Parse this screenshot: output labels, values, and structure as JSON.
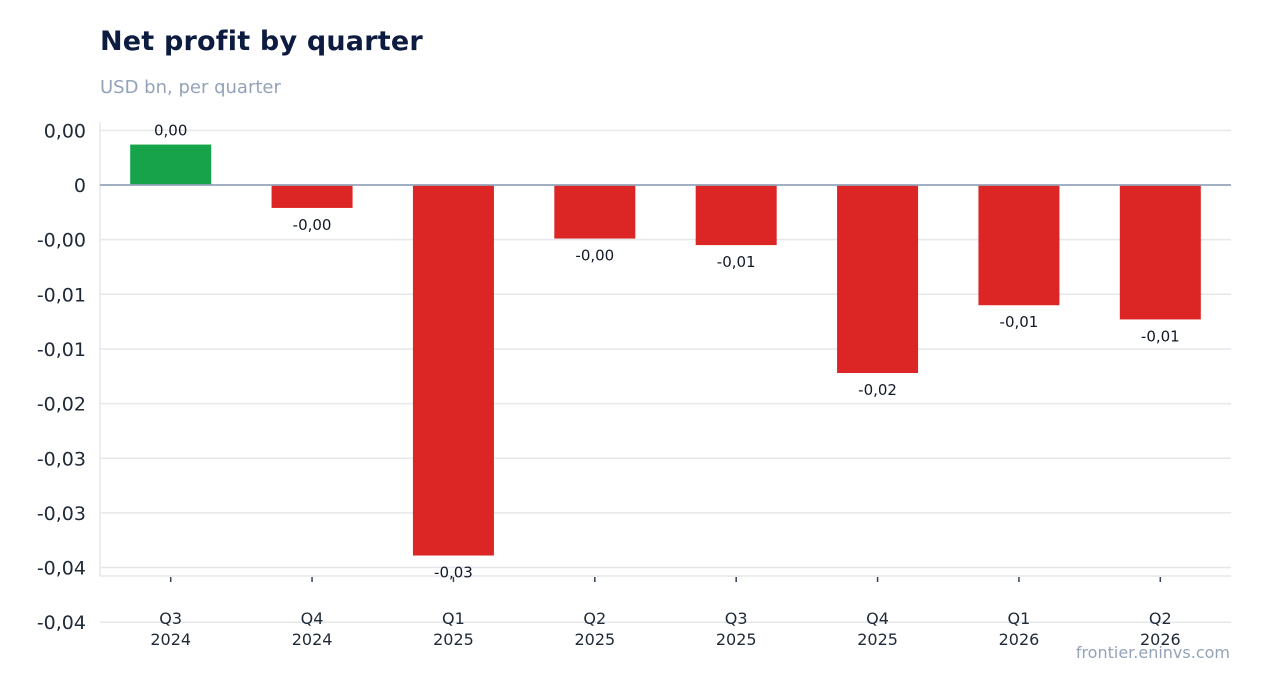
{
  "title": "Net profit by quarter",
  "subtitle": "USD bn, per quarter",
  "source": "frontier.eninvs.com",
  "colors": {
    "positive": "#16a34a",
    "negative": "#dc2626",
    "grid": "#e5e7eb",
    "zero_line": "#94a3b8"
  },
  "chart_data": {
    "type": "bar",
    "title": "Net profit by quarter",
    "subtitle": "USD bn, per quarter",
    "categories": [
      "Q3 2024",
      "Q4 2024",
      "Q1 2025",
      "Q2 2025",
      "Q3 2025",
      "Q4 2025",
      "Q1 2026",
      "Q2 2026"
    ],
    "category_lines": [
      [
        "Q3",
        "2024"
      ],
      [
        "Q4",
        "2024"
      ],
      [
        "Q1",
        "2025"
      ],
      [
        "Q2",
        "2025"
      ],
      [
        "Q3",
        "2025"
      ],
      [
        "Q4",
        "2025"
      ],
      [
        "Q1",
        "2026"
      ],
      [
        "Q2",
        "2026"
      ]
    ],
    "values": [
      0.0037,
      -0.0021,
      -0.0339,
      -0.0049,
      -0.0055,
      -0.0172,
      -0.011,
      -0.0123
    ],
    "data_labels": [
      "0,00",
      "-0,00",
      "-0,03",
      "-0,00",
      "-0,01",
      "-0,02",
      "-0,01",
      "-0,01"
    ],
    "yticks": [
      0.005,
      0,
      -0.005,
      -0.01,
      -0.015,
      -0.02,
      -0.025,
      -0.03,
      -0.035,
      -0.04
    ],
    "ytick_labels": [
      "0,00",
      "0",
      "-0,00",
      "-0,01",
      "-0,01",
      "-0,02",
      "-0,03",
      "-0,03",
      "-0,04",
      "-0,04"
    ],
    "ylim": [
      -0.0408,
      0.0058
    ],
    "xlabel": "",
    "ylabel": "",
    "grid": true,
    "legend": "none"
  }
}
